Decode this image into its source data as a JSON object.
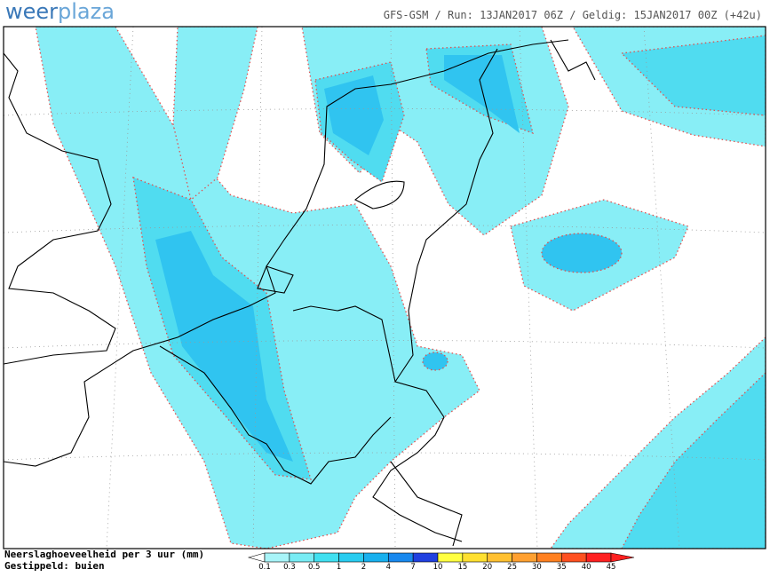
{
  "logo": {
    "part1": "weer",
    "part2": "plaza"
  },
  "header": {
    "info": "GFS-GSM / Run: 13JAN2017 06Z / Geldig: 15JAN2017 00Z (+42u)"
  },
  "legend": {
    "title": "Neerslaghoeveelheid per 3 uur (mm)",
    "subtitle": "Gestippeld: buien",
    "scale": [
      0.1,
      0.3,
      0.5,
      1,
      2,
      4,
      7,
      10,
      15,
      20,
      25,
      30,
      35,
      40,
      45
    ],
    "colors": [
      "#a8f4f8",
      "#78ecf4",
      "#40e0f0",
      "#28ccf0",
      "#18b0ee",
      "#1888ee",
      "#2040e0",
      "#ffff40",
      "#ffe030",
      "#ffc030",
      "#ffa030",
      "#ff8020",
      "#ff5020",
      "#ff2020"
    ],
    "low_color": "#ffffff",
    "high_color": "#ff2020"
  }
}
